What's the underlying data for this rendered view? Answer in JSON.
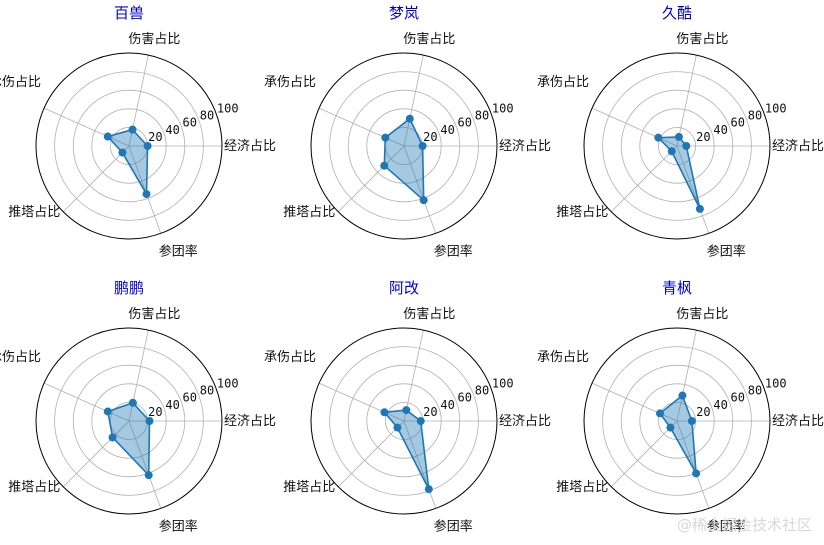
{
  "chart_data": [
    {
      "type": "radar",
      "title": "百兽",
      "axes": [
        "经济占比",
        "伤害占比",
        "承伤占比",
        "推塔占比",
        "参团率"
      ],
      "values": [
        20,
        18,
        25,
        10,
        55
      ],
      "rticks": [
        20,
        40,
        60,
        80,
        100
      ],
      "rlim": [
        0,
        100
      ],
      "color": "#1f77b4"
    },
    {
      "type": "radar",
      "title": "梦岚",
      "axes": [
        "经济占比",
        "伤害占比",
        "承伤占比",
        "推塔占比",
        "参团率"
      ],
      "values": [
        20,
        30,
        22,
        30,
        62
      ],
      "rticks": [
        20,
        40,
        60,
        80,
        100
      ],
      "rlim": [
        0,
        100
      ],
      "color": "#1f77b4"
    },
    {
      "type": "radar",
      "title": "久酷",
      "axes": [
        "经济占比",
        "伤害占比",
        "承伤占比",
        "推塔占比",
        "参团率"
      ],
      "values": [
        10,
        10,
        22,
        8,
        72
      ],
      "rticks": [
        20,
        40,
        60,
        80,
        100
      ],
      "rlim": [
        0,
        100
      ],
      "color": "#1f77b4"
    },
    {
      "type": "radar",
      "title": "鹏鹏",
      "axes": [
        "经济占比",
        "伤害占比",
        "承伤占比",
        "推塔占比",
        "参团率"
      ],
      "values": [
        22,
        20,
        25,
        25,
        62
      ],
      "rticks": [
        20,
        40,
        60,
        80,
        100
      ],
      "rlim": [
        0,
        100
      ],
      "color": "#1f77b4"
    },
    {
      "type": "radar",
      "title": "阿改",
      "axes": [
        "经济占比",
        "伤害占比",
        "承伤占比",
        "推塔占比",
        "参团率"
      ],
      "values": [
        18,
        12,
        23,
        10,
        78
      ],
      "rticks": [
        20,
        40,
        60,
        80,
        100
      ],
      "rlim": [
        0,
        100
      ],
      "color": "#1f77b4"
    },
    {
      "type": "radar",
      "title": "青枫",
      "axes": [
        "经济占比",
        "伤害占比",
        "承伤占比",
        "推塔占比",
        "参团率"
      ],
      "values": [
        16,
        28,
        20,
        10,
        60
      ],
      "rticks": [
        20,
        40,
        60,
        80,
        100
      ],
      "rlim": [
        0,
        100
      ],
      "color": "#1f77b4"
    }
  ],
  "watermark": "@稀土掘金技术社区"
}
